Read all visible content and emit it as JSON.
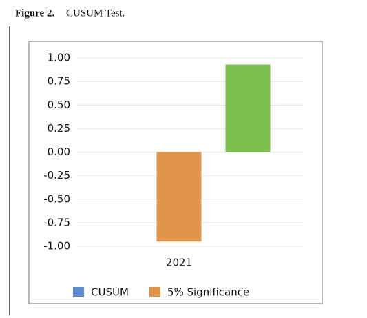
{
  "caption": {
    "label": "Figure 2.",
    "title": "CUSUM Test."
  },
  "chart_data": {
    "type": "bar",
    "categories": [
      "2021"
    ],
    "series": [
      {
        "name": "CUSUM",
        "color": "#5b8bd0",
        "values": [
          null
        ]
      },
      {
        "name": "5% Significance",
        "color": "#e0954a",
        "values": [
          -0.95
        ]
      },
      {
        "color": "#7cbd4e",
        "values": [
          0.93
        ]
      }
    ],
    "ylim": [
      -1,
      1
    ],
    "yticks": [
      {
        "value": -1,
        "label": "-1.00"
      },
      -0.75,
      {
        "value": -0.5,
        "label": "-0.50"
      },
      -0.25,
      {
        "value": 0,
        "label": "0.00"
      },
      0.25,
      {
        "value": 0.5,
        "label": "0.50"
      },
      0.75,
      {
        "value": 1,
        "label": "1.00"
      }
    ],
    "grid": true,
    "legend": "bottom"
  }
}
